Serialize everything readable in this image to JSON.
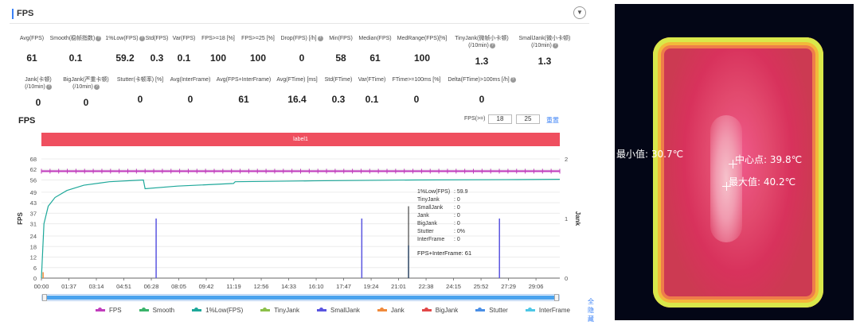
{
  "header": {
    "title": "FPS",
    "collapse_icon": "chevron-down-icon"
  },
  "metrics_row1": [
    {
      "label": "Avg(FPS)",
      "value": "61"
    },
    {
      "label": "Smooth(稳帧指数)",
      "value": "0.1",
      "help": true
    },
    {
      "label": "1%Low(FPS)",
      "value": "59.2",
      "help": true
    },
    {
      "label": "Std(FPS)",
      "value": "0.3"
    },
    {
      "label": "Var(FPS)",
      "value": "0.1"
    },
    {
      "label": "FPS>=18 [%]",
      "value": "100"
    },
    {
      "label": "FPS>=25 [%]",
      "value": "100"
    },
    {
      "label": "Drop(FPS) [/h]",
      "value": "0",
      "help": true
    },
    {
      "label": "Min(FPS)",
      "value": "58"
    },
    {
      "label": "Median(FPS)",
      "value": "61"
    },
    {
      "label": "MedRange(FPS)[%]",
      "value": "100"
    },
    {
      "label": "TinyJank(微帧小卡顿)",
      "label2": "(/10min)",
      "value": "1.3",
      "help": true
    },
    {
      "label": "SmallJank(微小卡顿)",
      "label2": "(/10min)",
      "value": "1.3",
      "help": true
    }
  ],
  "metrics_row2": [
    {
      "label": "Jank(卡顿)",
      "label2": "(/10min)",
      "value": "0",
      "help": true
    },
    {
      "label": "BigJank(严重卡顿)",
      "label2": "(/10min)",
      "value": "0",
      "help": true
    },
    {
      "label": "Stutter(卡顿率) [%]",
      "value": "0"
    },
    {
      "label": "Avg(InterFrame)",
      "value": "0"
    },
    {
      "label": "Avg(FPS+InterFrame)",
      "value": "61"
    },
    {
      "label": "Avg(FTime) [ms]",
      "value": "16.4"
    },
    {
      "label": "Std(FTime)",
      "value": "0.3"
    },
    {
      "label": "Var(FTime)",
      "value": "0.1"
    },
    {
      "label": "FTime>=100ms [%]",
      "value": "0"
    },
    {
      "label": "Delta(FTime)>100ms [/h]",
      "value": "0",
      "help": true
    }
  ],
  "chart_controls": {
    "title": "FPS",
    "fps_gte_label": "FPS(>=)",
    "threshold_1": "18",
    "threshold_2": "25",
    "reset_label": "重置",
    "band_label": "label1"
  },
  "tooltip": {
    "rows": [
      {
        "k": "1%Low(FPS)",
        "v": ": 59.9"
      },
      {
        "k": "TinyJank",
        "v": ": 0"
      },
      {
        "k": "SmallJank",
        "v": ": 0"
      },
      {
        "k": "Jank",
        "v": ": 0"
      },
      {
        "k": "BigJank",
        "v": ": 0"
      },
      {
        "k": "Stutter",
        "v": ": 0%"
      },
      {
        "k": "InterFrame",
        "v": ": 0"
      }
    ],
    "last": "FPS+InterFrame: 61"
  },
  "legend": {
    "items": [
      {
        "name": "FPS",
        "color": "#c13ebd"
      },
      {
        "name": "Smooth",
        "color": "#3bb36a"
      },
      {
        "name": "1%Low(FPS)",
        "color": "#1ea89a"
      },
      {
        "name": "TinyJank",
        "color": "#8cc04a"
      },
      {
        "name": "SmallJank",
        "color": "#5a55e0"
      },
      {
        "name": "Jank",
        "color": "#f08a3c"
      },
      {
        "name": "BigJank",
        "color": "#e24848"
      },
      {
        "name": "Stutter",
        "color": "#4a8fe6"
      },
      {
        "name": "InterFrame",
        "color": "#4ec7e6"
      }
    ],
    "hide_all_label": "全隐藏"
  },
  "chart_data": {
    "type": "line",
    "xlabel": "",
    "ylabel": "FPS",
    "y2label": "Jank",
    "ylim": [
      0,
      68
    ],
    "y2lim": [
      0,
      2
    ],
    "y_ticks": [
      0,
      6,
      12,
      18,
      24,
      31,
      37,
      43,
      49,
      56,
      62,
      68
    ],
    "y2_ticks": [
      0,
      1,
      2
    ],
    "x_ticks": [
      "00:00",
      "01:37",
      "03:14",
      "04:51",
      "06:28",
      "08:05",
      "09:42",
      "11:19",
      "12:56",
      "14:33",
      "16:10",
      "17:47",
      "19:24",
      "21:01",
      "22:38",
      "24:15",
      "25:52",
      "27:29",
      "29:06"
    ],
    "x_end": 30.5,
    "series": [
      {
        "name": "FPS",
        "x": [
          0,
          30.5
        ],
        "values": [
          61,
          61
        ]
      },
      {
        "name": "1%Low(FPS)",
        "x": [
          0,
          0.15,
          0.4,
          0.8,
          1.5,
          2.5,
          4,
          6,
          6.1,
          8,
          11.3,
          11.4,
          16,
          22,
          28,
          30.5
        ],
        "values": [
          0,
          31,
          41,
          46,
          50,
          53,
          55,
          56,
          51,
          52.5,
          54,
          55,
          55.5,
          56,
          56.2,
          56.4
        ]
      },
      {
        "name": "SmallJank",
        "x": [
          6.75,
          18.85,
          26.95
        ],
        "values": [
          1,
          1,
          1
        ]
      },
      {
        "name": "Jank",
        "x": [
          0.1
        ],
        "values": [
          0.1
        ]
      },
      {
        "name": "Stutter",
        "x": [
          21.6
        ],
        "values": [
          0.55
        ]
      }
    ],
    "grid": true
  },
  "thermal": {
    "min_label": "最小值: 30.7℃",
    "center_label": "中心点: 39.8℃",
    "max_label": "最大值: 40.2℃"
  }
}
